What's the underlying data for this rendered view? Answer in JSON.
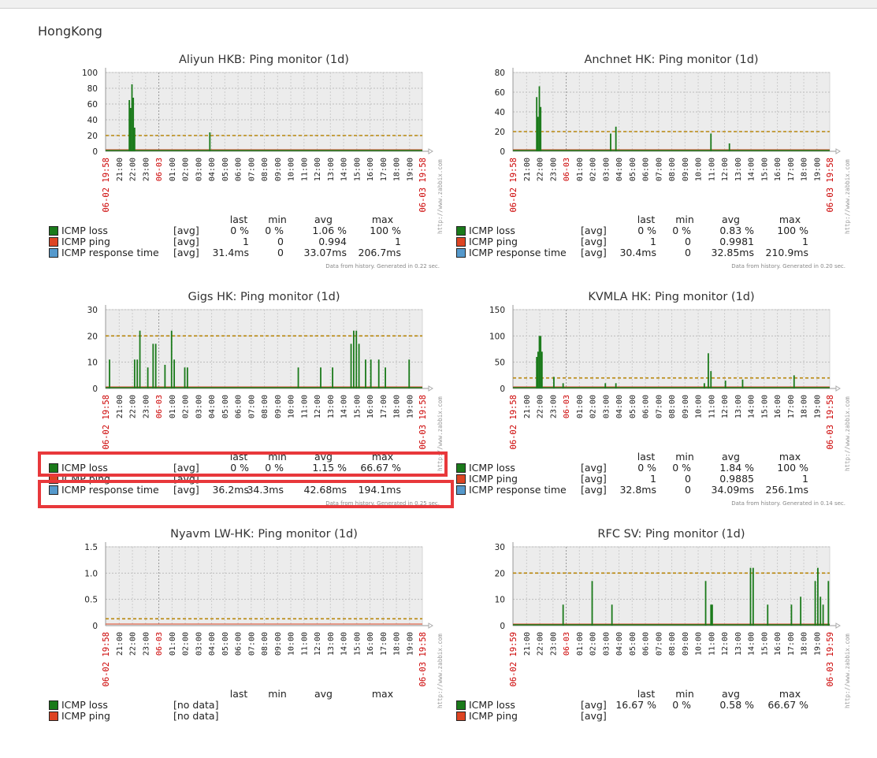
{
  "page": {
    "heading": "HongKong"
  },
  "legend_columns": [
    "last",
    "min",
    "avg",
    "max"
  ],
  "colors": {
    "loss": "#1a7a1a",
    "ping": "#dd4422",
    "response": "#5599cc",
    "trigger": "#b8860b",
    "grid_bg": "#ececec",
    "time_red": "#cc0000",
    "highlight": "#e8383b"
  },
  "watermark": "http://www.zabbix.com",
  "chart_data": [
    {
      "type": "line",
      "title": "Aliyun HKB: Ping monitor (1d)",
      "x_ticks": [
        "21:00",
        "22:00",
        "23:00",
        "06-03",
        "01:00",
        "02:00",
        "03:00",
        "04:00",
        "05:00",
        "06:00",
        "07:00",
        "08:00",
        "09:00",
        "10:00",
        "11:00",
        "12:00",
        "13:00",
        "14:00",
        "15:00",
        "16:00",
        "17:00",
        "18:00",
        "19:00"
      ],
      "x_start": "06-02 19:58",
      "x_end": "06-03 19:58",
      "ylim": [
        0,
        100
      ],
      "y_ticks": [
        "0",
        "20",
        "40",
        "60",
        "80",
        "100"
      ],
      "trigger_value": 20,
      "series_loss": [
        [
          1.8,
          65
        ],
        [
          1.9,
          55
        ],
        [
          2.0,
          85
        ],
        [
          2.1,
          68
        ],
        [
          2.2,
          30
        ],
        [
          7.9,
          24
        ]
      ],
      "legend": [
        {
          "name": "ICMP loss",
          "fn": "[avg]",
          "last": "0 %",
          "min": "0 %",
          "avg": "1.06 %",
          "max": "100 %"
        },
        {
          "name": "ICMP ping",
          "fn": "[avg]",
          "last": "1",
          "min": "0",
          "avg": "0.994",
          "max": "1"
        },
        {
          "name": "ICMP response time",
          "fn": "[avg]",
          "last": "31.4ms",
          "min": "0",
          "avg": "33.07ms",
          "max": "206.7ms"
        }
      ],
      "footnote": "Data from history. Generated in 0.22 sec."
    },
    {
      "type": "line",
      "title": "Anchnet HK: Ping monitor (1d)",
      "x_ticks": [
        "21:00",
        "22:00",
        "23:00",
        "06-03",
        "01:00",
        "02:00",
        "03:00",
        "04:00",
        "05:00",
        "06:00",
        "07:00",
        "08:00",
        "09:00",
        "10:00",
        "11:00",
        "12:00",
        "13:00",
        "14:00",
        "15:00",
        "16:00",
        "17:00",
        "18:00",
        "19:00"
      ],
      "x_start": "06-02 19:58",
      "x_end": "06-03 19:58",
      "ylim": [
        0,
        80
      ],
      "y_ticks": [
        "0",
        "20",
        "40",
        "60",
        "80"
      ],
      "trigger_value": 20,
      "series_loss": [
        [
          1.8,
          55
        ],
        [
          1.9,
          35
        ],
        [
          2.0,
          66
        ],
        [
          2.1,
          45
        ],
        [
          7.4,
          18
        ],
        [
          7.8,
          25
        ],
        [
          15.0,
          18
        ],
        [
          16.4,
          8
        ]
      ],
      "legend": [
        {
          "name": "ICMP loss",
          "fn": "[avg]",
          "last": "0 %",
          "min": "0 %",
          "avg": "0.83 %",
          "max": "100 %"
        },
        {
          "name": "ICMP ping",
          "fn": "[avg]",
          "last": "1",
          "min": "0",
          "avg": "0.9981",
          "max": "1"
        },
        {
          "name": "ICMP response time",
          "fn": "[avg]",
          "last": "30.4ms",
          "min": "0",
          "avg": "32.85ms",
          "max": "210.9ms"
        }
      ],
      "footnote": "Data from history. Generated in 0.20 sec."
    },
    {
      "type": "line",
      "title": "Gigs HK: Ping monitor (1d)",
      "x_ticks": [
        "21:00",
        "22:00",
        "23:00",
        "06-03",
        "01:00",
        "02:00",
        "03:00",
        "04:00",
        "05:00",
        "06:00",
        "07:00",
        "08:00",
        "09:00",
        "10:00",
        "11:00",
        "12:00",
        "13:00",
        "14:00",
        "15:00",
        "16:00",
        "17:00",
        "18:00",
        "19:00"
      ],
      "x_start": "06-02 19:58",
      "x_end": "06-03 19:58",
      "ylim": [
        0,
        30
      ],
      "y_ticks": [
        "0",
        "10",
        "20",
        "30"
      ],
      "trigger_value": 20,
      "series_loss": [
        [
          0.3,
          11
        ],
        [
          2.2,
          11
        ],
        [
          2.4,
          11
        ],
        [
          2.6,
          22
        ],
        [
          3.2,
          8
        ],
        [
          3.6,
          17
        ],
        [
          3.8,
          17
        ],
        [
          4.5,
          9
        ],
        [
          5.0,
          22
        ],
        [
          5.2,
          11
        ],
        [
          6.0,
          8
        ],
        [
          6.2,
          8
        ],
        [
          14.6,
          8
        ],
        [
          16.3,
          8
        ],
        [
          17.2,
          8
        ],
        [
          18.6,
          17
        ],
        [
          18.8,
          22
        ],
        [
          19.0,
          22
        ],
        [
          19.2,
          17
        ],
        [
          19.7,
          11
        ],
        [
          20.1,
          11
        ],
        [
          20.7,
          11
        ],
        [
          21.2,
          8
        ],
        [
          23.0,
          11
        ]
      ],
      "legend": [
        {
          "name": "ICMP loss",
          "fn": "[avg]",
          "last": "0 %",
          "min": "0 %",
          "avg": "1.15 %",
          "max": "66.67 %"
        },
        {
          "name": "ICMP ping",
          "fn": "[avg]",
          "last": "",
          "min": "",
          "avg": "",
          "max": ""
        },
        {
          "name": "ICMP response time",
          "fn": "[avg]",
          "last": "36.2ms",
          "min": "34.3ms",
          "avg": "42.68ms",
          "max": "194.1ms"
        }
      ],
      "footnote": "Data from history. Generated in 0.25 sec."
    },
    {
      "type": "line",
      "title": "KVMLA HK: Ping monitor (1d)",
      "x_ticks": [
        "21:00",
        "22:00",
        "23:00",
        "06-03",
        "01:00",
        "02:00",
        "03:00",
        "04:00",
        "05:00",
        "06:00",
        "07:00",
        "08:00",
        "09:00",
        "10:00",
        "11:00",
        "12:00",
        "13:00",
        "14:00",
        "15:00",
        "16:00",
        "17:00",
        "18:00",
        "19:00"
      ],
      "x_start": "06-02 19:58",
      "x_end": "06-03 19:58",
      "ylim": [
        0,
        150
      ],
      "y_ticks": [
        "0",
        "50",
        "100",
        "150"
      ],
      "trigger_value": 20,
      "series_loss": [
        [
          1.8,
          60
        ],
        [
          1.9,
          70
        ],
        [
          2.0,
          100
        ],
        [
          2.1,
          100
        ],
        [
          2.2,
          70
        ],
        [
          3.1,
          22
        ],
        [
          3.8,
          10
        ],
        [
          7.0,
          10
        ],
        [
          7.8,
          10
        ],
        [
          14.5,
          10
        ],
        [
          14.8,
          67
        ],
        [
          15.0,
          33
        ],
        [
          16.1,
          15
        ],
        [
          17.4,
          17
        ],
        [
          21.3,
          25
        ]
      ],
      "legend": [
        {
          "name": "ICMP loss",
          "fn": "[avg]",
          "last": "0 %",
          "min": "0 %",
          "avg": "1.84 %",
          "max": "100 %"
        },
        {
          "name": "ICMP ping",
          "fn": "[avg]",
          "last": "1",
          "min": "0",
          "avg": "0.9885",
          "max": "1"
        },
        {
          "name": "ICMP response time",
          "fn": "[avg]",
          "last": "32.8ms",
          "min": "0",
          "avg": "34.09ms",
          "max": "256.1ms"
        }
      ],
      "footnote": "Data from history. Generated in 0.14 sec."
    },
    {
      "type": "line",
      "title": "Nyavm LW-HK: Ping monitor (1d)",
      "x_ticks": [
        "21:00",
        "22:00",
        "23:00",
        "06-03",
        "01:00",
        "02:00",
        "03:00",
        "04:00",
        "05:00",
        "06:00",
        "07:00",
        "08:00",
        "09:00",
        "10:00",
        "11:00",
        "12:00",
        "13:00",
        "14:00",
        "15:00",
        "16:00",
        "17:00",
        "18:00",
        "19:00"
      ],
      "x_start": "06-02 19:58",
      "x_end": "06-03 19:58",
      "ylim": [
        0,
        1.5
      ],
      "y_ticks": [
        "0",
        "0.5",
        "1.0",
        "1.5"
      ],
      "trigger_value": 0.13,
      "series_loss": [],
      "legend": [
        {
          "name": "ICMP loss",
          "fn": "[no data]",
          "last": "",
          "min": "",
          "avg": "",
          "max": ""
        },
        {
          "name": "ICMP ping",
          "fn": "[no data]",
          "last": "",
          "min": "",
          "avg": "",
          "max": ""
        }
      ],
      "footnote": ""
    },
    {
      "type": "line",
      "title": "RFC SV: Ping monitor (1d)",
      "x_ticks": [
        "21:00",
        "22:00",
        "23:00",
        "06-03",
        "01:00",
        "02:00",
        "03:00",
        "04:00",
        "05:00",
        "06:00",
        "07:00",
        "08:00",
        "09:00",
        "10:00",
        "11:00",
        "12:00",
        "13:00",
        "14:00",
        "15:00",
        "16:00",
        "17:00",
        "18:00",
        "19:00"
      ],
      "x_start": "06-02 19:59",
      "x_end": "06-03 19:59",
      "ylim": [
        0,
        30
      ],
      "y_ticks": [
        "0",
        "10",
        "20",
        "30"
      ],
      "trigger_value": 20,
      "series_loss": [
        [
          3.8,
          8
        ],
        [
          6.0,
          17
        ],
        [
          7.5,
          8
        ],
        [
          14.6,
          17
        ],
        [
          15.0,
          8
        ],
        [
          15.1,
          8
        ],
        [
          18.0,
          22
        ],
        [
          18.2,
          22
        ],
        [
          19.3,
          8
        ],
        [
          21.1,
          8
        ],
        [
          21.8,
          11
        ],
        [
          22.9,
          17
        ],
        [
          23.1,
          22
        ],
        [
          23.3,
          11
        ],
        [
          23.5,
          8
        ],
        [
          23.9,
          17
        ]
      ],
      "legend": [
        {
          "name": "ICMP loss",
          "fn": "[avg]",
          "last": "16.67 %",
          "min": "0 %",
          "avg": "0.58 %",
          "max": "66.67 %"
        },
        {
          "name": "ICMP ping",
          "fn": "[avg]",
          "last": "",
          "min": "",
          "avg": "",
          "max": ""
        }
      ],
      "footnote": ""
    }
  ]
}
